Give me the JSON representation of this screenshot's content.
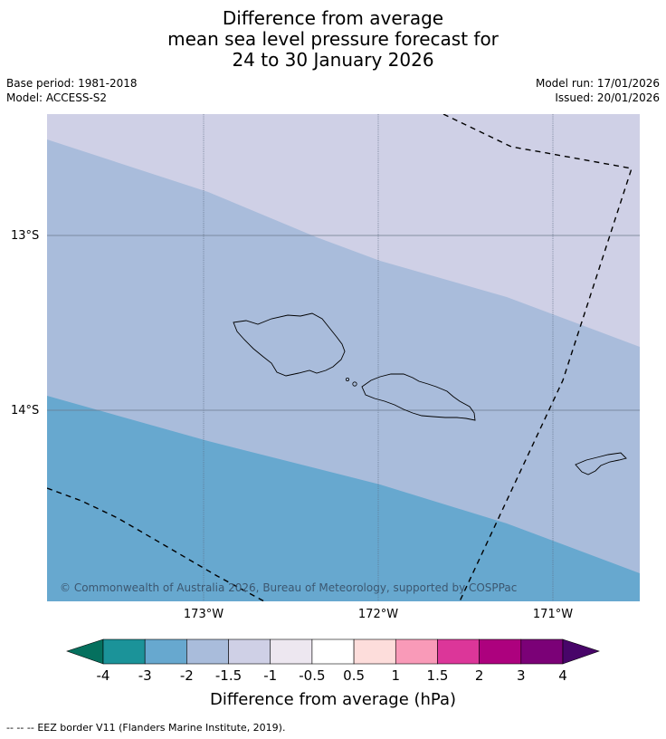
{
  "title": {
    "line1": "Difference from average",
    "line2": "mean sea level pressure forecast for",
    "line3": "24 to 30 January 2026"
  },
  "meta": {
    "base_period": "Base period: 1981-2018",
    "model": "Model: ACCESS-S2",
    "model_run": "Model run: 17/01/2026",
    "issued": "Issued: 20/01/2026"
  },
  "map": {
    "lat_labels": [
      "13°S",
      "14°S"
    ],
    "lon_labels": [
      "173°W",
      "172°W",
      "171°W"
    ],
    "copyright": "© Commonwealth of Australia 2026, Bureau of Meteorology, supported by COSPPac",
    "colors": {
      "band_-1.5_-1": "#cfd0e6",
      "band_-2_-1.5": "#a9bcdb",
      "band_-3_-2": "#67a8cf",
      "coast": "#000000"
    }
  },
  "colorbar": {
    "ticks": [
      "-4",
      "-3",
      "-2",
      "-1.5",
      "-1",
      "-0.5",
      "0.5",
      "1",
      "1.5",
      "2",
      "3",
      "4"
    ],
    "colors": [
      "#05705e",
      "#1b9399",
      "#67a8cf",
      "#a9bcdb",
      "#cfd0e6",
      "#ede7f0",
      "#ffffff",
      "#fddddb",
      "#f99ab8",
      "#dc3699",
      "#ad017e",
      "#7b0177",
      "#480569"
    ],
    "label": "Difference from average (hPa)"
  },
  "legend": {
    "marker": "--  --  --",
    "text": "EEZ border V11 (Flanders Marine Institute, 2019)."
  }
}
